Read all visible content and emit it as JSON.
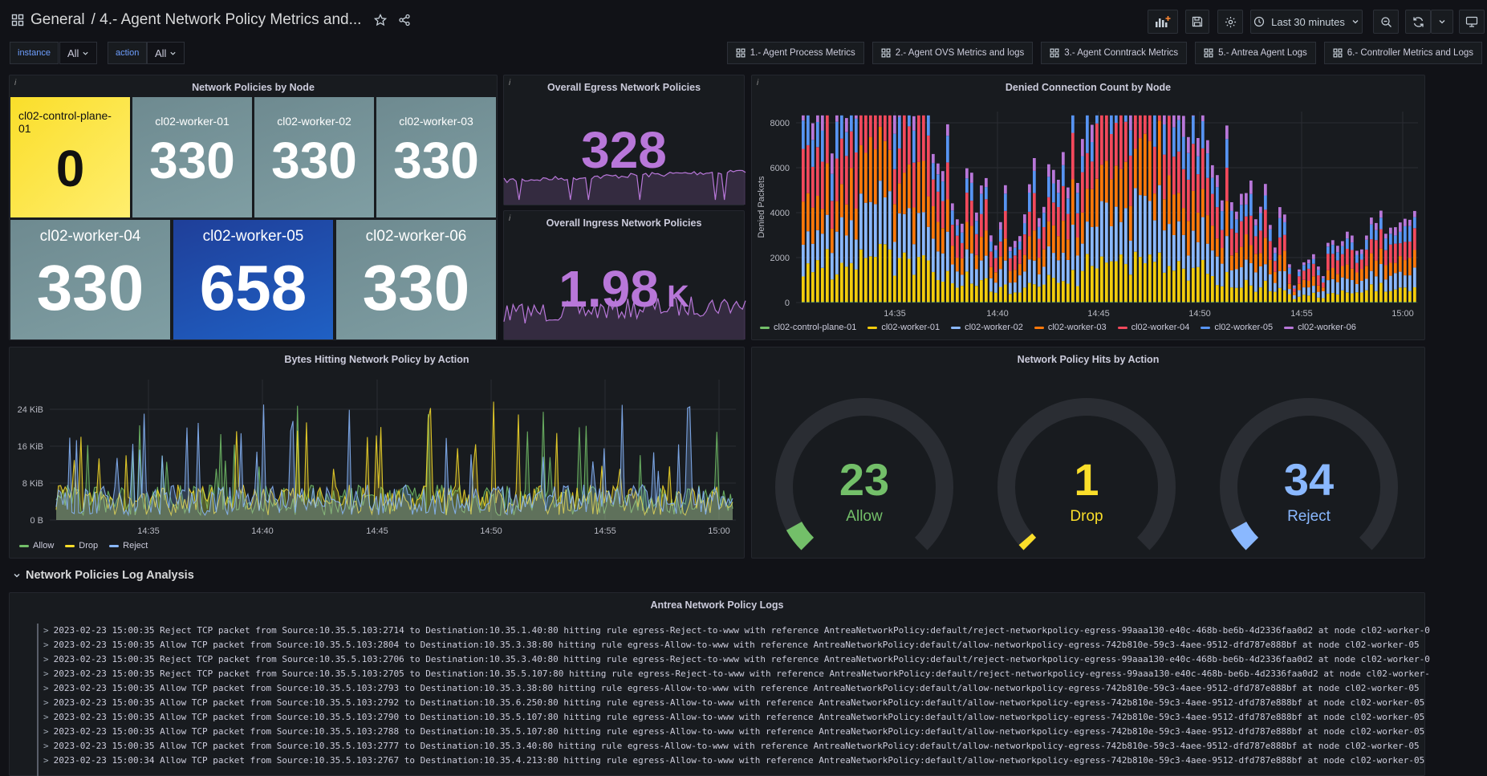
{
  "header": {
    "folder": "General",
    "title": "/ 4.- Agent Network Policy Metrics and...",
    "time_range": "Last 30 minutes"
  },
  "variables": [
    {
      "label": "instance",
      "value": "All"
    },
    {
      "label": "action",
      "value": "All"
    }
  ],
  "links": [
    "1.- Agent Process Metrics",
    "2.- Agent OVS Metrics and logs",
    "3.- Agent Conntrack Metrics",
    "5.- Antrea Agent Logs",
    "6.- Controller Metrics and Logs"
  ],
  "panels": {
    "by_node": {
      "title": "Network Policies by Node",
      "tiles": [
        {
          "name": "cl02-control-plane-01",
          "value": "0",
          "color": "#fade2a"
        },
        {
          "name": "cl02-worker-01",
          "value": "330",
          "color": "#6e8a90"
        },
        {
          "name": "cl02-worker-02",
          "value": "330",
          "color": "#6e8a90"
        },
        {
          "name": "cl02-worker-03",
          "value": "330",
          "color": "#6e8a90"
        },
        {
          "name": "cl02-worker-04",
          "value": "330",
          "color": "#6e8a90"
        },
        {
          "name": "cl02-worker-05",
          "value": "658",
          "color": "#1f60c4"
        },
        {
          "name": "cl02-worker-06",
          "value": "330",
          "color": "#6e8a90"
        }
      ]
    },
    "egress": {
      "title": "Overall Egress Network Policies",
      "value": "328",
      "color": "#b877d9"
    },
    "ingress": {
      "title": "Overall Ingress Network Policies",
      "value": "1.98",
      "unit": "K",
      "color": "#b877d9"
    },
    "denied": {
      "title": "Denied Connection Count by Node"
    },
    "bytes": {
      "title": "Bytes Hitting Network Policy by Action"
    },
    "hits": {
      "title": "Network Policy Hits by Action"
    }
  },
  "row": {
    "title": "Network Policies Log Analysis"
  },
  "logs": {
    "title": "Antrea Network Policy Logs",
    "lines": [
      "2023-02-23 15:00:35 Reject TCP packet from Source:10.35.5.103:2714 to Destination:10.35.1.40:80 hitting rule egress-Reject-to-www with reference AntreaNetworkPolicy:default/reject-networkpolicy-egress-99aaa130-e40c-468b-be6b-4d2336faa0d2 at node cl02-worker-0",
      "2023-02-23 15:00:35 Allow TCP packet from Source:10.35.5.103:2804 to Destination:10.35.3.38:80 hitting rule egress-Allow-to-www with reference AntreaNetworkPolicy:default/allow-networkpolicy-egress-742b810e-59c3-4aee-9512-dfd787e888bf at node cl02-worker-05",
      "2023-02-23 15:00:35 Reject TCP packet from Source:10.35.5.103:2706 to Destination:10.35.3.40:80 hitting rule egress-Reject-to-www with reference AntreaNetworkPolicy:default/reject-networkpolicy-egress-99aaa130-e40c-468b-be6b-4d2336faa0d2 at node cl02-worker-0",
      "2023-02-23 15:00:35 Reject TCP packet from Source:10.35.5.103:2705 to Destination:10.35.5.107:80 hitting rule egress-Reject-to-www with reference AntreaNetworkPolicy:default/reject-networkpolicy-egress-99aaa130-e40c-468b-be6b-4d2336faa0d2 at node cl02-worker-",
      "2023-02-23 15:00:35 Allow TCP packet from Source:10.35.5.103:2793 to Destination:10.35.3.38:80 hitting rule egress-Allow-to-www with reference AntreaNetworkPolicy:default/allow-networkpolicy-egress-742b810e-59c3-4aee-9512-dfd787e888bf at node cl02-worker-05",
      "2023-02-23 15:00:35 Allow TCP packet from Source:10.35.5.103:2792 to Destination:10.35.6.250:80 hitting rule egress-Allow-to-www with reference AntreaNetworkPolicy:default/allow-networkpolicy-egress-742b810e-59c3-4aee-9512-dfd787e888bf at node cl02-worker-05",
      "2023-02-23 15:00:35 Allow TCP packet from Source:10.35.5.103:2790 to Destination:10.35.5.107:80 hitting rule egress-Allow-to-www with reference AntreaNetworkPolicy:default/allow-networkpolicy-egress-742b810e-59c3-4aee-9512-dfd787e888bf at node cl02-worker-05",
      "2023-02-23 15:00:35 Allow TCP packet from Source:10.35.5.103:2788 to Destination:10.35.5.107:80 hitting rule egress-Allow-to-www with reference AntreaNetworkPolicy:default/allow-networkpolicy-egress-742b810e-59c3-4aee-9512-dfd787e888bf at node cl02-worker-05",
      "2023-02-23 15:00:35 Allow TCP packet from Source:10.35.5.103:2777 to Destination:10.35.3.40:80 hitting rule egress-Allow-to-www with reference AntreaNetworkPolicy:default/allow-networkpolicy-egress-742b810e-59c3-4aee-9512-dfd787e888bf at node cl02-worker-05",
      "2023-02-23 15:00:34 Allow TCP packet from Source:10.35.5.103:2767 to Destination:10.35.4.213:80 hitting rule egress-Allow-to-www with reference AntreaNetworkPolicy:default/allow-networkpolicy-egress-742b810e-59c3-4aee-9512-dfd787e888bf at node cl02-worker-05"
    ]
  },
  "chart_data": [
    {
      "type": "bar",
      "title": "Denied Connection Count by Node",
      "ylabel": "Denied Packets",
      "ylim": [
        0,
        8500
      ],
      "yticks": [
        "0",
        "2000",
        "4000",
        "6000",
        "8000"
      ],
      "xticks": [
        "14:35",
        "14:40",
        "14:45",
        "14:50",
        "14:55",
        "15:00"
      ],
      "stacked": true,
      "series": [
        {
          "name": "cl02-control-plane-01",
          "color": "#73bf69",
          "level": 0
        },
        {
          "name": "cl02-worker-01",
          "color": "#f2cc0c",
          "level": 1300
        },
        {
          "name": "cl02-worker-02",
          "color": "#8ab8ff",
          "level": 1500
        },
        {
          "name": "cl02-worker-03",
          "color": "#ff780a",
          "level": 1400
        },
        {
          "name": "cl02-worker-04",
          "color": "#f2495c",
          "level": 1700
        },
        {
          "name": "cl02-worker-05",
          "color": "#5794f2",
          "level": 1100
        },
        {
          "name": "cl02-worker-06",
          "color": "#b877d9",
          "level": 700
        }
      ]
    },
    {
      "type": "line",
      "title": "Bytes Hitting Network Policy by Action",
      "yticks": [
        "0 B",
        "8 KiB",
        "16 KiB",
        "24 KiB"
      ],
      "xticks": [
        "14:35",
        "14:40",
        "14:45",
        "14:50",
        "14:55",
        "15:00"
      ],
      "series": [
        {
          "name": "Allow",
          "color": "#73bf69"
        },
        {
          "name": "Drop",
          "color": "#fade2a"
        },
        {
          "name": "Reject",
          "color": "#8ab8ff"
        }
      ]
    },
    {
      "type": "gauge",
      "title": "Network Policy Hits by Action",
      "gauges": [
        {
          "label": "Allow",
          "value": 23,
          "color": "#73bf69",
          "max": 60
        },
        {
          "label": "Drop",
          "value": 1,
          "color": "#fade2a",
          "max": 60
        },
        {
          "label": "Reject",
          "value": 34,
          "color": "#8ab8ff",
          "max": 60
        }
      ]
    }
  ]
}
